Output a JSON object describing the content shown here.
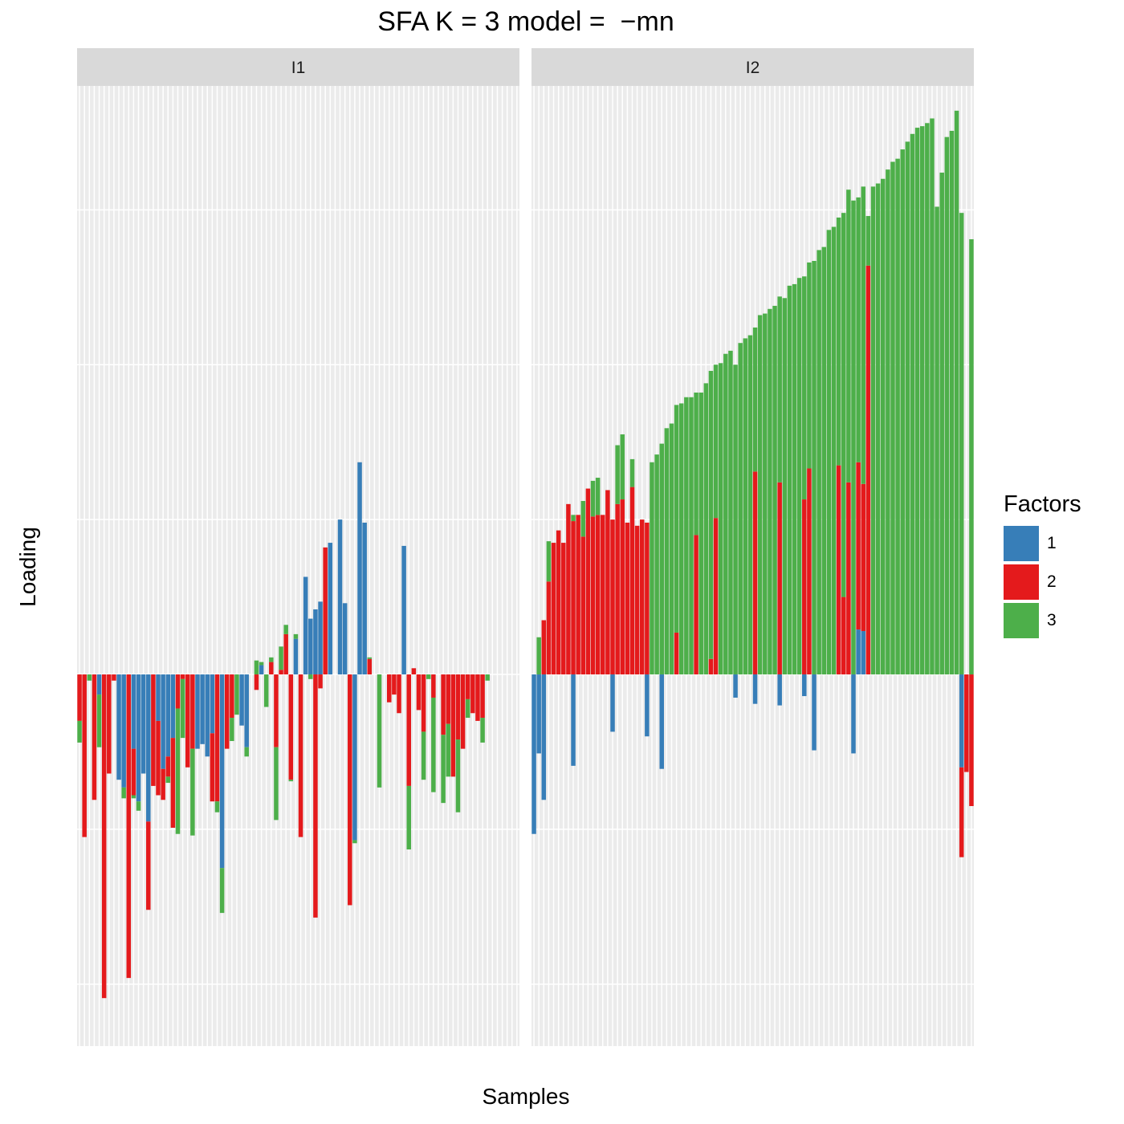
{
  "chart_data": {
    "type": "bar",
    "title": "SFA K = 3 model =  −mn",
    "xlabel": "Samples",
    "ylabel": "Loading",
    "ylim": [
      -2.4,
      3.8
    ],
    "grid": true,
    "legend": {
      "title": "Factors",
      "placement": "right"
    },
    "stacked": true,
    "factors": [
      {
        "name": "1",
        "color": "#377EB8"
      },
      {
        "name": "2",
        "color": "#E41A1C"
      },
      {
        "name": "3",
        "color": "#4DAF4A"
      }
    ],
    "panels": [
      {
        "label": "I1",
        "samples": [
          {
            "f1": 0.0,
            "f2": -0.3,
            "f3": -0.14
          },
          {
            "f1": 0.0,
            "f2": -1.05,
            "f3": 0.0
          },
          {
            "f1": 0.0,
            "f2": 0.0,
            "f3": -0.04
          },
          {
            "f1": 0.0,
            "f2": -0.81,
            "f3": 0.0
          },
          {
            "f1": -0.13,
            "f2": 0.0,
            "f3": -0.34
          },
          {
            "f1": 0.0,
            "f2": -2.09,
            "f3": 0.0
          },
          {
            "f1": 0.0,
            "f2": -0.64,
            "f3": 0.0
          },
          {
            "f1": 0.0,
            "f2": -0.04,
            "f3": 0.0
          },
          {
            "f1": -0.68,
            "f2": 0.0,
            "f3": 0.0
          },
          {
            "f1": -0.73,
            "f2": 0.0,
            "f3": -0.07
          },
          {
            "f1": 0.0,
            "f2": -1.96,
            "f3": 0.0
          },
          {
            "f1": -0.48,
            "f2": -0.3,
            "f3": -0.02
          },
          {
            "f1": -0.82,
            "f2": 0.0,
            "f3": -0.06
          },
          {
            "f1": -0.64,
            "f2": 0.0,
            "f3": 0.0
          },
          {
            "f1": -0.95,
            "f2": -0.57,
            "f3": 0.0
          },
          {
            "f1": 0.0,
            "f2": -0.72,
            "f3": 0.0
          },
          {
            "f1": -0.3,
            "f2": -0.48,
            "f3": 0.0
          },
          {
            "f1": -0.61,
            "f2": -0.2,
            "f3": 0.0
          },
          {
            "f1": -0.53,
            "f2": -0.13,
            "f3": -0.04
          },
          {
            "f1": -0.41,
            "f2": -0.58,
            "f3": 0.0
          },
          {
            "f1": 0.0,
            "f2": -0.22,
            "f3": -0.81
          },
          {
            "f1": 0.0,
            "f2": -0.03,
            "f3": -0.38
          },
          {
            "f1": 0.0,
            "f2": -0.6,
            "f3": 0.0
          },
          {
            "f1": 0.0,
            "f2": -0.48,
            "f3": -0.56
          },
          {
            "f1": -0.48,
            "f2": 0.0,
            "f3": 0.0
          },
          {
            "f1": -0.45,
            "f2": 0.0,
            "f3": 0.0
          },
          {
            "f1": -0.53,
            "f2": 0.0,
            "f3": 0.0
          },
          {
            "f1": -0.38,
            "f2": -0.44,
            "f3": 0.0
          },
          {
            "f1": 0.0,
            "f2": -0.82,
            "f3": -0.07
          },
          {
            "f1": -1.25,
            "f2": 0.0,
            "f3": -0.29
          },
          {
            "f1": 0.0,
            "f2": -0.48,
            "f3": 0.0
          },
          {
            "f1": 0.0,
            "f2": -0.28,
            "f3": -0.15
          },
          {
            "f1": 0.0,
            "f2": 0.0,
            "f3": -0.26
          },
          {
            "f1": -0.33,
            "f2": 0.0,
            "f3": 0.0
          },
          {
            "f1": -0.47,
            "f2": 0.0,
            "f3": -0.06
          },
          {
            "f1": 0.0,
            "f2": 0.0,
            "f3": 0.0
          },
          {
            "f1": 0.0,
            "f2": -0.1,
            "f3": 0.09
          },
          {
            "f1": 0.06,
            "f2": 0.0,
            "f3": 0.02
          },
          {
            "f1": 0.0,
            "f2": 0.0,
            "f3": -0.21
          },
          {
            "f1": 0.0,
            "f2": 0.08,
            "f3": 0.03
          },
          {
            "f1": 0.0,
            "f2": -0.47,
            "f3": -0.47
          },
          {
            "f1": 0.0,
            "f2": 0.03,
            "f3": 0.15
          },
          {
            "f1": 0.0,
            "f2": 0.26,
            "f3": 0.06
          },
          {
            "f1": 0.0,
            "f2": -0.68,
            "f3": -0.01
          },
          {
            "f1": 0.23,
            "f2": 0.0,
            "f3": 0.03
          },
          {
            "f1": 0.0,
            "f2": -1.05,
            "f3": 0.0
          },
          {
            "f1": 0.63,
            "f2": 0.0,
            "f3": 0.0
          },
          {
            "f1": 0.36,
            "f2": 0.0,
            "f3": -0.03
          },
          {
            "f1": 0.42,
            "f2": -1.57,
            "f3": 0.0
          },
          {
            "f1": 0.47,
            "f2": -0.09,
            "f3": 0.0
          },
          {
            "f1": 0.0,
            "f2": 0.82,
            "f3": 0.0
          },
          {
            "f1": 0.85,
            "f2": 0.0,
            "f3": 0.0
          },
          {
            "f1": 0.0,
            "f2": 0.0,
            "f3": 0.0
          },
          {
            "f1": 1.0,
            "f2": 0.0,
            "f3": 0.0
          },
          {
            "f1": 0.46,
            "f2": 0.0,
            "f3": 0.0
          },
          {
            "f1": 0.0,
            "f2": -1.49,
            "f3": 0.0
          },
          {
            "f1": -1.07,
            "f2": 0.0,
            "f3": -0.02
          },
          {
            "f1": 1.37,
            "f2": 0.0,
            "f3": 0.0
          },
          {
            "f1": 0.98,
            "f2": 0.0,
            "f3": 0.0
          },
          {
            "f1": 0.0,
            "f2": 0.1,
            "f3": 0.01
          },
          {
            "f1": 0.0,
            "f2": 0.0,
            "f3": 0.0
          },
          {
            "f1": 0.0,
            "f2": 0.0,
            "f3": -0.73
          },
          {
            "f1": 0.0,
            "f2": 0.0,
            "f3": 0.0
          },
          {
            "f1": 0.0,
            "f2": -0.18,
            "f3": 0.0
          },
          {
            "f1": 0.0,
            "f2": -0.13,
            "f3": 0.0
          },
          {
            "f1": 0.0,
            "f2": -0.25,
            "f3": 0.0
          },
          {
            "f1": 0.83,
            "f2": 0.0,
            "f3": 0.0
          },
          {
            "f1": 0.0,
            "f2": -0.72,
            "f3": -0.41
          },
          {
            "f1": 0.0,
            "f2": 0.04,
            "f3": 0.0
          },
          {
            "f1": 0.0,
            "f2": -0.23,
            "f3": 0.0
          },
          {
            "f1": 0.0,
            "f2": -0.37,
            "f3": -0.31
          },
          {
            "f1": 0.0,
            "f2": 0.0,
            "f3": -0.03
          },
          {
            "f1": 0.0,
            "f2": -0.15,
            "f3": -0.61
          },
          {
            "f1": 0.0,
            "f2": 0.0,
            "f3": 0.0
          },
          {
            "f1": 0.0,
            "f2": -0.39,
            "f3": -0.44
          },
          {
            "f1": 0.0,
            "f2": -0.32,
            "f3": -0.34
          },
          {
            "f1": 0.0,
            "f2": -0.66,
            "f3": 0.0
          },
          {
            "f1": 0.0,
            "f2": -0.42,
            "f3": -0.47
          },
          {
            "f1": 0.0,
            "f2": -0.48,
            "f3": 0.0
          },
          {
            "f1": 0.0,
            "f2": -0.16,
            "f3": -0.12
          },
          {
            "f1": 0.0,
            "f2": -0.25,
            "f3": 0.0
          },
          {
            "f1": 0.0,
            "f2": -0.3,
            "f3": 0.0
          },
          {
            "f1": 0.0,
            "f2": -0.28,
            "f3": -0.16
          },
          {
            "f1": 0.0,
            "f2": 0.0,
            "f3": -0.04
          },
          {
            "f1": 0.0,
            "f2": 0.0,
            "f3": 0.0
          },
          {
            "f1": 0.0,
            "f2": 0.0,
            "f3": 0.0
          },
          {
            "f1": 0.0,
            "f2": 0.0,
            "f3": 0.0
          },
          {
            "f1": 0.0,
            "f2": 0.0,
            "f3": 0.0
          },
          {
            "f1": 0.0,
            "f2": 0.0,
            "f3": 0.0
          },
          {
            "f1": 0.0,
            "f2": 0.0,
            "f3": 0.0
          }
        ]
      },
      {
        "label": "I2",
        "samples": [
          {
            "f1": -1.03,
            "f2": 0.0,
            "f3": 0.0
          },
          {
            "f1": -0.51,
            "f2": 0.0,
            "f3": 0.24
          },
          {
            "f1": -0.81,
            "f2": 0.35,
            "f3": 0.0
          },
          {
            "f1": 0.0,
            "f2": 0.6,
            "f3": 0.26
          },
          {
            "f1": 0.0,
            "f2": 0.85,
            "f3": 0.0
          },
          {
            "f1": 0.0,
            "f2": 0.93,
            "f3": 0.0
          },
          {
            "f1": 0.0,
            "f2": 0.85,
            "f3": 0.0
          },
          {
            "f1": 0.0,
            "f2": 1.1,
            "f3": 0.0
          },
          {
            "f1": -0.59,
            "f2": 0.99,
            "f3": 0.04
          },
          {
            "f1": 0.0,
            "f2": 1.03,
            "f3": 0.0
          },
          {
            "f1": 0.0,
            "f2": 0.89,
            "f3": 0.23
          },
          {
            "f1": 0.0,
            "f2": 1.2,
            "f3": 0.0
          },
          {
            "f1": 0.0,
            "f2": 1.02,
            "f3": 0.23
          },
          {
            "f1": 0.0,
            "f2": 1.03,
            "f3": 0.24
          },
          {
            "f1": 0.0,
            "f2": 1.03,
            "f3": 0.0
          },
          {
            "f1": 0.0,
            "f2": 1.19,
            "f3": 0.0
          },
          {
            "f1": -0.37,
            "f2": 1.0,
            "f3": 0.0
          },
          {
            "f1": 0.0,
            "f2": 1.1,
            "f3": 0.38
          },
          {
            "f1": 0.0,
            "f2": 1.13,
            "f3": 0.42
          },
          {
            "f1": 0.0,
            "f2": 0.98,
            "f3": 0.0
          },
          {
            "f1": 0.0,
            "f2": 1.21,
            "f3": 0.18
          },
          {
            "f1": 0.0,
            "f2": 0.96,
            "f3": 0.0
          },
          {
            "f1": 0.0,
            "f2": 1.0,
            "f3": 0.0
          },
          {
            "f1": -0.4,
            "f2": 0.98,
            "f3": 0.0
          },
          {
            "f1": 0.0,
            "f2": 0.0,
            "f3": 1.37
          },
          {
            "f1": 0.0,
            "f2": 0.0,
            "f3": 1.42
          },
          {
            "f1": -0.61,
            "f2": 0.0,
            "f3": 1.49
          },
          {
            "f1": 0.0,
            "f2": 0.0,
            "f3": 1.59
          },
          {
            "f1": 0.0,
            "f2": 0.0,
            "f3": 1.62
          },
          {
            "f1": 0.0,
            "f2": 0.27,
            "f3": 1.47
          },
          {
            "f1": 0.0,
            "f2": 0.0,
            "f3": 1.75
          },
          {
            "f1": 0.0,
            "f2": 0.0,
            "f3": 1.79
          },
          {
            "f1": 0.0,
            "f2": 0.0,
            "f3": 1.79
          },
          {
            "f1": 0.0,
            "f2": 0.9,
            "f3": 0.92
          },
          {
            "f1": 0.0,
            "f2": 0.0,
            "f3": 1.82
          },
          {
            "f1": 0.0,
            "f2": 0.0,
            "f3": 1.88
          },
          {
            "f1": 0.0,
            "f2": 0.1,
            "f3": 1.86
          },
          {
            "f1": 0.0,
            "f2": 1.01,
            "f3": 0.99
          },
          {
            "f1": 0.0,
            "f2": 0.0,
            "f3": 2.01
          },
          {
            "f1": 0.0,
            "f2": 0.0,
            "f3": 2.07
          },
          {
            "f1": 0.0,
            "f2": 0.0,
            "f3": 2.09
          },
          {
            "f1": -0.15,
            "f2": 0.0,
            "f3": 2.0
          },
          {
            "f1": 0.0,
            "f2": 0.0,
            "f3": 2.14
          },
          {
            "f1": 0.0,
            "f2": 0.0,
            "f3": 2.17
          },
          {
            "f1": 0.0,
            "f2": 0.0,
            "f3": 2.19
          },
          {
            "f1": -0.19,
            "f2": 1.31,
            "f3": 0.93
          },
          {
            "f1": 0.0,
            "f2": 0.0,
            "f3": 2.32
          },
          {
            "f1": 0.0,
            "f2": 0.0,
            "f3": 2.33
          },
          {
            "f1": 0.0,
            "f2": 0.0,
            "f3": 2.36
          },
          {
            "f1": 0.0,
            "f2": 0.0,
            "f3": 2.38
          },
          {
            "f1": -0.2,
            "f2": 1.24,
            "f3": 1.2
          },
          {
            "f1": 0.0,
            "f2": 0.0,
            "f3": 2.43
          },
          {
            "f1": 0.0,
            "f2": 0.0,
            "f3": 2.51
          },
          {
            "f1": 0.0,
            "f2": 0.0,
            "f3": 2.52
          },
          {
            "f1": 0.0,
            "f2": 0.0,
            "f3": 2.56
          },
          {
            "f1": -0.14,
            "f2": 1.13,
            "f3": 1.44
          },
          {
            "f1": 0.0,
            "f2": 1.33,
            "f3": 1.33
          },
          {
            "f1": -0.49,
            "f2": 0.0,
            "f3": 2.67
          },
          {
            "f1": 0.0,
            "f2": 0.0,
            "f3": 2.74
          },
          {
            "f1": 0.0,
            "f2": 0.0,
            "f3": 2.76
          },
          {
            "f1": 0.0,
            "f2": 0.0,
            "f3": 2.87
          },
          {
            "f1": 0.0,
            "f2": 0.0,
            "f3": 2.89
          },
          {
            "f1": 0.0,
            "f2": 1.35,
            "f3": 1.6
          },
          {
            "f1": 0.0,
            "f2": 0.5,
            "f3": 2.48
          },
          {
            "f1": 0.0,
            "f2": 1.24,
            "f3": 1.89
          },
          {
            "f1": -0.51,
            "f2": 0.0,
            "f3": 3.06
          },
          {
            "f1": 0.29,
            "f2": 1.08,
            "f3": 1.71
          },
          {
            "f1": 0.28,
            "f2": 0.95,
            "f3": 1.92
          },
          {
            "f1": 0.0,
            "f2": 2.64,
            "f3": 0.32
          },
          {
            "f1": 0.0,
            "f2": 0.0,
            "f3": 3.15
          },
          {
            "f1": 0.0,
            "f2": 0.0,
            "f3": 3.17
          },
          {
            "f1": 0.0,
            "f2": 0.0,
            "f3": 3.2
          },
          {
            "f1": 0.0,
            "f2": 0.0,
            "f3": 3.26
          },
          {
            "f1": 0.0,
            "f2": 0.0,
            "f3": 3.31
          },
          {
            "f1": 0.0,
            "f2": 0.0,
            "f3": 3.33
          },
          {
            "f1": 0.0,
            "f2": 0.0,
            "f3": 3.39
          },
          {
            "f1": 0.0,
            "f2": 0.0,
            "f3": 3.44
          },
          {
            "f1": 0.0,
            "f2": 0.0,
            "f3": 3.49
          },
          {
            "f1": 0.0,
            "f2": 0.0,
            "f3": 3.53
          },
          {
            "f1": 0.0,
            "f2": 0.0,
            "f3": 3.54
          },
          {
            "f1": 0.0,
            "f2": 0.0,
            "f3": 3.56
          },
          {
            "f1": 0.0,
            "f2": 0.0,
            "f3": 3.59
          },
          {
            "f1": 0.0,
            "f2": 0.0,
            "f3": 3.02
          },
          {
            "f1": 0.0,
            "f2": 0.0,
            "f3": 3.24
          },
          {
            "f1": 0.0,
            "f2": 0.0,
            "f3": 3.47
          },
          {
            "f1": 0.0,
            "f2": 0.0,
            "f3": 3.51
          },
          {
            "f1": 0.0,
            "f2": 0.0,
            "f3": 3.64
          },
          {
            "f1": -0.6,
            "f2": -0.58,
            "f3": 2.98
          },
          {
            "f1": 0.0,
            "f2": -0.63,
            "f3": 0.0
          },
          {
            "f1": 0.0,
            "f2": -0.85,
            "f3": 2.81
          }
        ]
      }
    ]
  }
}
